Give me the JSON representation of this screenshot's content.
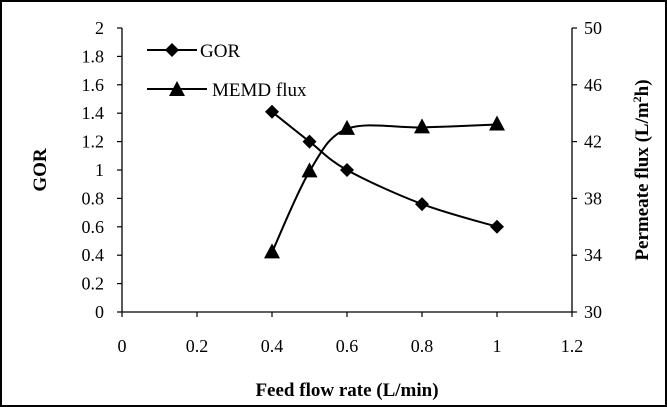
{
  "chart_data": {
    "type": "line",
    "xlabel": "Feed flow rate (L/min)",
    "ylabel": "GOR",
    "y2label_main": "Permeate flux (L/m",
    "y2label_sup": "2",
    "y2label_end": "h)",
    "xlim": [
      0,
      1.2
    ],
    "ylim": [
      0,
      2
    ],
    "y2lim": [
      30,
      50
    ],
    "x_ticks": [
      "0",
      "0.2",
      "0.4",
      "0.6",
      "0.8",
      "1",
      "1.2"
    ],
    "y_ticks": [
      "0",
      "0.2",
      "0.4",
      "0.6",
      "0.8",
      "1",
      "1.2",
      "1.4",
      "1.6",
      "1.8",
      "2"
    ],
    "y2_ticks": [
      "30",
      "34",
      "38",
      "42",
      "46",
      "50"
    ],
    "grid": false,
    "legend_position": "top-left",
    "series": [
      {
        "name": "GOR",
        "axis": "left",
        "marker": "diamond",
        "smooth": true,
        "color": "#000000",
        "x": [
          0.4,
          0.5,
          0.6,
          0.8,
          1.0
        ],
        "y": [
          1.41,
          1.2,
          1.0,
          0.76,
          0.6
        ]
      },
      {
        "name": "MEMD flux",
        "axis": "right",
        "marker": "triangle",
        "smooth": true,
        "color": "#000000",
        "x": [
          0.4,
          0.5,
          0.6,
          0.8,
          1.0
        ],
        "y": [
          34.2,
          39.9,
          42.9,
          43.0,
          43.2
        ]
      }
    ]
  }
}
